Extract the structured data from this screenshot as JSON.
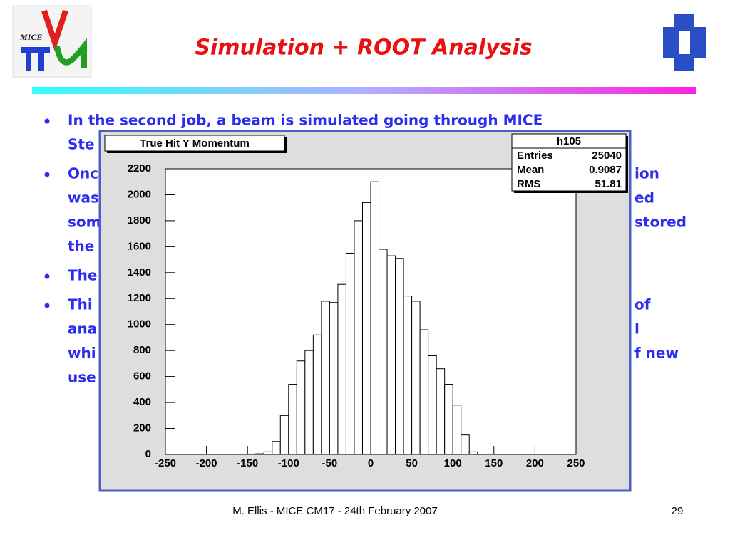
{
  "title": "Simulation + ROOT Analysis",
  "bullets": [
    {
      "lines": [
        {
          "left": "In the second job, a beam is simulated going through MICE"
        },
        {
          "left": "Ste"
        }
      ]
    },
    {
      "lines": [
        {
          "left": "Onc",
          "right": "ion"
        },
        {
          "left": "was",
          "right": "ed"
        },
        {
          "left": "som",
          "right": "stored"
        },
        {
          "left": "the"
        }
      ]
    },
    {
      "lines": [
        {
          "left": "The"
        }
      ]
    },
    {
      "lines": [
        {
          "left": "Thi",
          "right": "of"
        },
        {
          "left": "ana",
          "right": "l"
        },
        {
          "left": "whi",
          "right": "f new"
        },
        {
          "left": "use"
        }
      ]
    }
  ],
  "footer": "M. Ellis - MICE CM17 - 24th February 2007",
  "page_number": "29",
  "logo_text": "MICE",
  "chart_data": {
    "type": "histogram",
    "title": "True Hit Y Momentum",
    "stats": {
      "name": "h105",
      "rows": [
        {
          "label": "Entries",
          "value": 25040
        },
        {
          "label": "Mean",
          "value": 0.9087
        },
        {
          "label": "RMS",
          "value": 51.81
        }
      ]
    },
    "bins": [
      -150,
      -140,
      -130,
      -120,
      -110,
      -100,
      -90,
      -80,
      -70,
      -60,
      -50,
      -40,
      -30,
      -20,
      -10,
      0,
      10,
      20,
      30,
      40,
      50,
      60,
      70,
      80,
      90,
      100,
      110,
      120,
      130
    ],
    "values": [
      3,
      5,
      20,
      100,
      300,
      540,
      720,
      800,
      920,
      1180,
      1170,
      1310,
      1550,
      1800,
      1940,
      2100,
      1580,
      1530,
      1510,
      1220,
      1180,
      960,
      760,
      660,
      540,
      380,
      150,
      20
    ],
    "color": "#000000",
    "xlim": [
      -250,
      250
    ],
    "xticks": [
      -250,
      -200,
      -150,
      -100,
      -50,
      0,
      50,
      100,
      150,
      200,
      250
    ],
    "ylim": [
      0,
      2200
    ],
    "yticks": [
      0,
      200,
      400,
      600,
      800,
      1000,
      1200,
      1400,
      1600,
      1800,
      2000,
      2200
    ]
  }
}
